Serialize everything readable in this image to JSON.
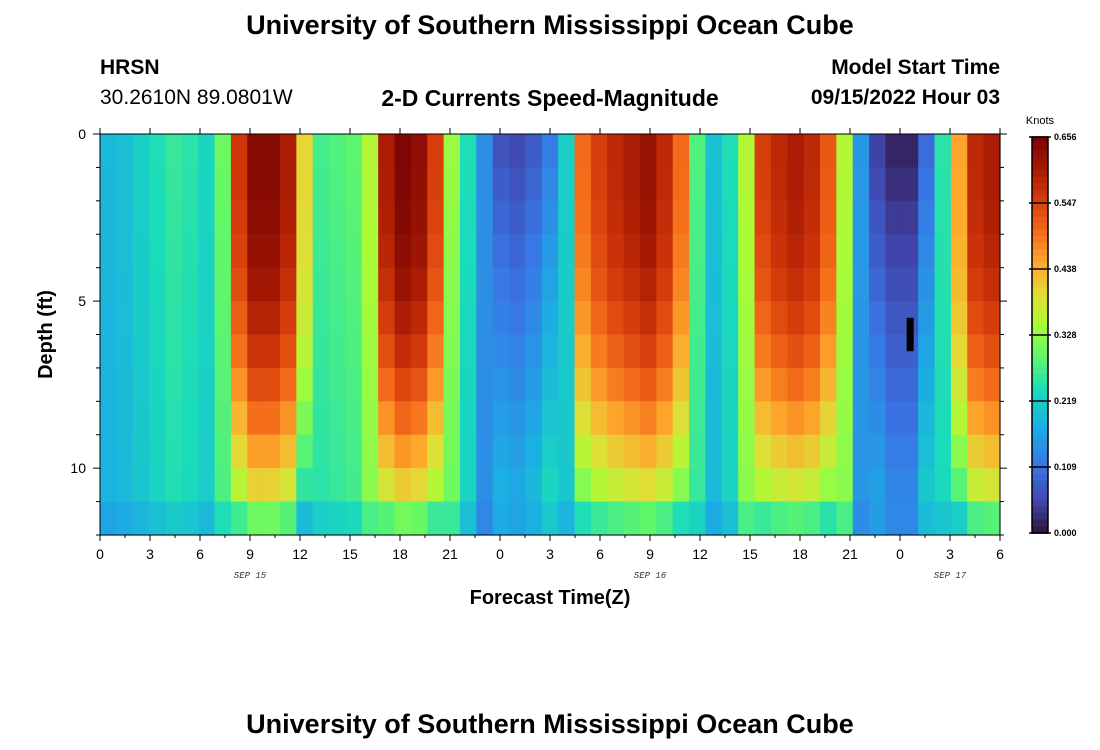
{
  "header": {
    "title": "University of Southern Mississippi Ocean Cube",
    "station_code": "HRSN",
    "station_coords": "30.2610N  89.0801W",
    "subtitle": "2-D Currents Speed-Magnitude",
    "model_start_label": "Model Start Time",
    "model_start_value": "09/15/2022 Hour 03",
    "title_repeat": "University of Southern Mississippi Ocean Cube"
  },
  "chart_data": {
    "type": "heatmap",
    "title": "2-D Currents Speed-Magnitude",
    "xlabel": "Forecast Time(Z)",
    "ylabel": "Depth (ft)",
    "x_tick_labels": [
      "0",
      "3",
      "6",
      "9",
      "12",
      "15",
      "18",
      "21",
      "0",
      "3",
      "6",
      "9",
      "12",
      "15",
      "18",
      "21",
      "0",
      "3",
      "6"
    ],
    "date_labels": [
      {
        "label": "SEP 15",
        "at_tick": 3
      },
      {
        "label": "SEP 16",
        "at_tick": 11
      },
      {
        "label": "SEP 17",
        "at_tick": 17
      }
    ],
    "x_range_hours": [
      0,
      54
    ],
    "y_tick_labels": [
      "0",
      "5",
      "10"
    ],
    "ylim": [
      0,
      12
    ],
    "y_inverted": true,
    "colorbar": {
      "unit": "Knots",
      "ticks": [
        "0.656",
        "0.547",
        "0.438",
        "0.328",
        "0.219",
        "0.109",
        "0.000"
      ],
      "vmin": 0.0,
      "vmax": 0.656,
      "colormap": "turbo"
    },
    "description": "Current speed by forecast hour and depth; strong-flow bands near hours 9, 18, 32, 42 and 53, weak-flow bands near hours 0-6, 24-28 and 47-49.",
    "speed_profile_by_hour": [
      0.19,
      0.2,
      0.22,
      0.24,
      0.26,
      0.25,
      0.23,
      0.3,
      0.56,
      0.64,
      0.64,
      0.6,
      0.4,
      0.27,
      0.28,
      0.29,
      0.35,
      0.6,
      0.65,
      0.63,
      0.55,
      0.33,
      0.24,
      0.14,
      0.07,
      0.06,
      0.08,
      0.12,
      0.22,
      0.5,
      0.55,
      0.58,
      0.6,
      0.62,
      0.58,
      0.5,
      0.28,
      0.2,
      0.24,
      0.35,
      0.55,
      0.58,
      0.6,
      0.58,
      0.52,
      0.35,
      0.15,
      0.05,
      0.02,
      0.02,
      0.1,
      0.25,
      0.45,
      0.58,
      0.6
    ],
    "colors": {
      "background": "#ffffff",
      "marker": "#000000"
    }
  }
}
